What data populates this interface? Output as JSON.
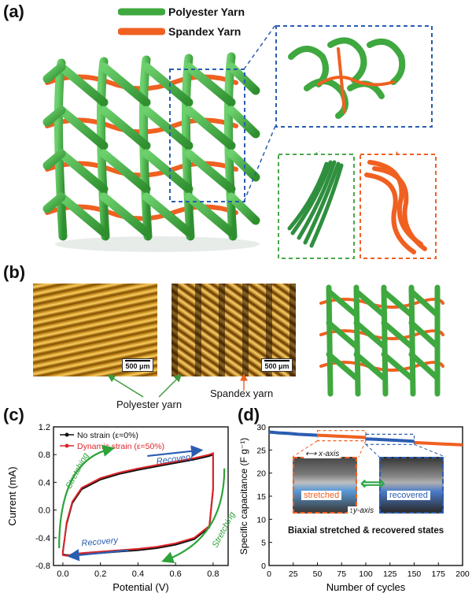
{
  "panel_a": {
    "label": "(a)",
    "legend": [
      {
        "name": "Polyester Yarn",
        "color": "#3fa83f"
      },
      {
        "name": "Spandex Yarn",
        "color": "#f06020"
      }
    ],
    "zoom_box_color": "#2a5db0",
    "green_box_color": "#4aa84a",
    "orange_box_color": "#f06020"
  },
  "panel_b": {
    "label": "(b)",
    "scalebars": [
      "500 μm",
      "500 μm"
    ],
    "captions": {
      "polyester": "Polyester yarn",
      "spandex": "Spandex yarn"
    }
  },
  "panel_c": {
    "label": "(c)",
    "legend": [
      {
        "name": "No strain (ε=0%)",
        "color": "#111111"
      },
      {
        "name": "Dynamic strain (ε=50%)",
        "color": "#e0252a"
      }
    ],
    "annotations": [
      "Stretching",
      "Recovery",
      "Stretching",
      "Recovery"
    ]
  },
  "panel_d": {
    "label": "(d)",
    "inset_labels": {
      "x_axis": "x-axis",
      "y_axis": "y-axis",
      "stretched": "stretched",
      "recovered": "recovered"
    },
    "caption": "Biaxial stretched & recovered states"
  },
  "chart_data": [
    {
      "type": "line",
      "panel": "c",
      "xlabel": "Potential (V)",
      "ylabel": "Current (mA)",
      "xlim": [
        -0.05,
        0.88
      ],
      "ylim": [
        -0.8,
        1.2
      ],
      "xticks": [
        "0.0",
        "0.2",
        "0.4",
        "0.6",
        "0.8"
      ],
      "yticks": [
        "-0.8",
        "-0.4",
        "0.0",
        "0.4",
        "0.8",
        "1.2"
      ],
      "series": [
        {
          "name": "No strain (ε=0%)",
          "color": "#111111",
          "x": [
            0.0,
            0.02,
            0.05,
            0.1,
            0.2,
            0.3,
            0.4,
            0.5,
            0.6,
            0.7,
            0.78,
            0.8,
            0.8,
            0.78,
            0.7,
            0.6,
            0.5,
            0.4,
            0.3,
            0.2,
            0.1,
            0.05,
            0.02,
            0.0,
            0.0
          ],
          "y": [
            -0.6,
            -0.2,
            0.1,
            0.3,
            0.44,
            0.52,
            0.58,
            0.63,
            0.68,
            0.73,
            0.78,
            0.8,
            0.3,
            -0.25,
            -0.42,
            -0.5,
            -0.55,
            -0.58,
            -0.6,
            -0.62,
            -0.64,
            -0.65,
            -0.65,
            -0.64,
            -0.6
          ]
        },
        {
          "name": "Dynamic strain (ε=50%)",
          "color": "#e0252a",
          "x": [
            0.0,
            0.02,
            0.05,
            0.1,
            0.2,
            0.3,
            0.4,
            0.5,
            0.6,
            0.7,
            0.78,
            0.8,
            0.8,
            0.78,
            0.7,
            0.6,
            0.5,
            0.4,
            0.3,
            0.2,
            0.1,
            0.05,
            0.02,
            0.0,
            0.0
          ],
          "y": [
            -0.62,
            -0.18,
            0.12,
            0.32,
            0.46,
            0.54,
            0.6,
            0.65,
            0.7,
            0.75,
            0.8,
            0.82,
            0.32,
            -0.23,
            -0.4,
            -0.48,
            -0.53,
            -0.56,
            -0.58,
            -0.6,
            -0.62,
            -0.64,
            -0.66,
            -0.65,
            -0.62
          ]
        }
      ]
    },
    {
      "type": "line",
      "panel": "d",
      "xlabel": "Number of cycles",
      "ylabel": "Specific capacitance (F g⁻¹)",
      "xlim": [
        0,
        200
      ],
      "ylim": [
        0,
        30
      ],
      "xticks": [
        "0",
        "25",
        "50",
        "75",
        "100",
        "125",
        "150",
        "175",
        "200"
      ],
      "yticks": [
        "0",
        "5",
        "10",
        "15",
        "20",
        "25",
        "30"
      ],
      "series": [
        {
          "name": "",
          "color": "#2a5db0",
          "x": [
            0,
            10,
            20,
            30,
            40,
            50
          ],
          "y": [
            28.9,
            28.7,
            28.6,
            28.4,
            28.3,
            28.2
          ]
        },
        {
          "name": "",
          "color": "#f06020",
          "x": [
            50,
            60,
            70,
            80,
            90,
            100
          ],
          "y": [
            28.2,
            28.1,
            28.0,
            27.9,
            27.8,
            27.7
          ]
        },
        {
          "name": "",
          "color": "#2a5db0",
          "x": [
            100,
            110,
            120,
            130,
            140,
            150
          ],
          "y": [
            27.4,
            27.3,
            27.2,
            27.1,
            27.0,
            26.9
          ]
        },
        {
          "name": "",
          "color": "#f06020",
          "x": [
            150,
            160,
            170,
            180,
            190,
            200
          ],
          "y": [
            26.6,
            26.5,
            26.4,
            26.3,
            26.2,
            26.1
          ]
        }
      ]
    }
  ]
}
